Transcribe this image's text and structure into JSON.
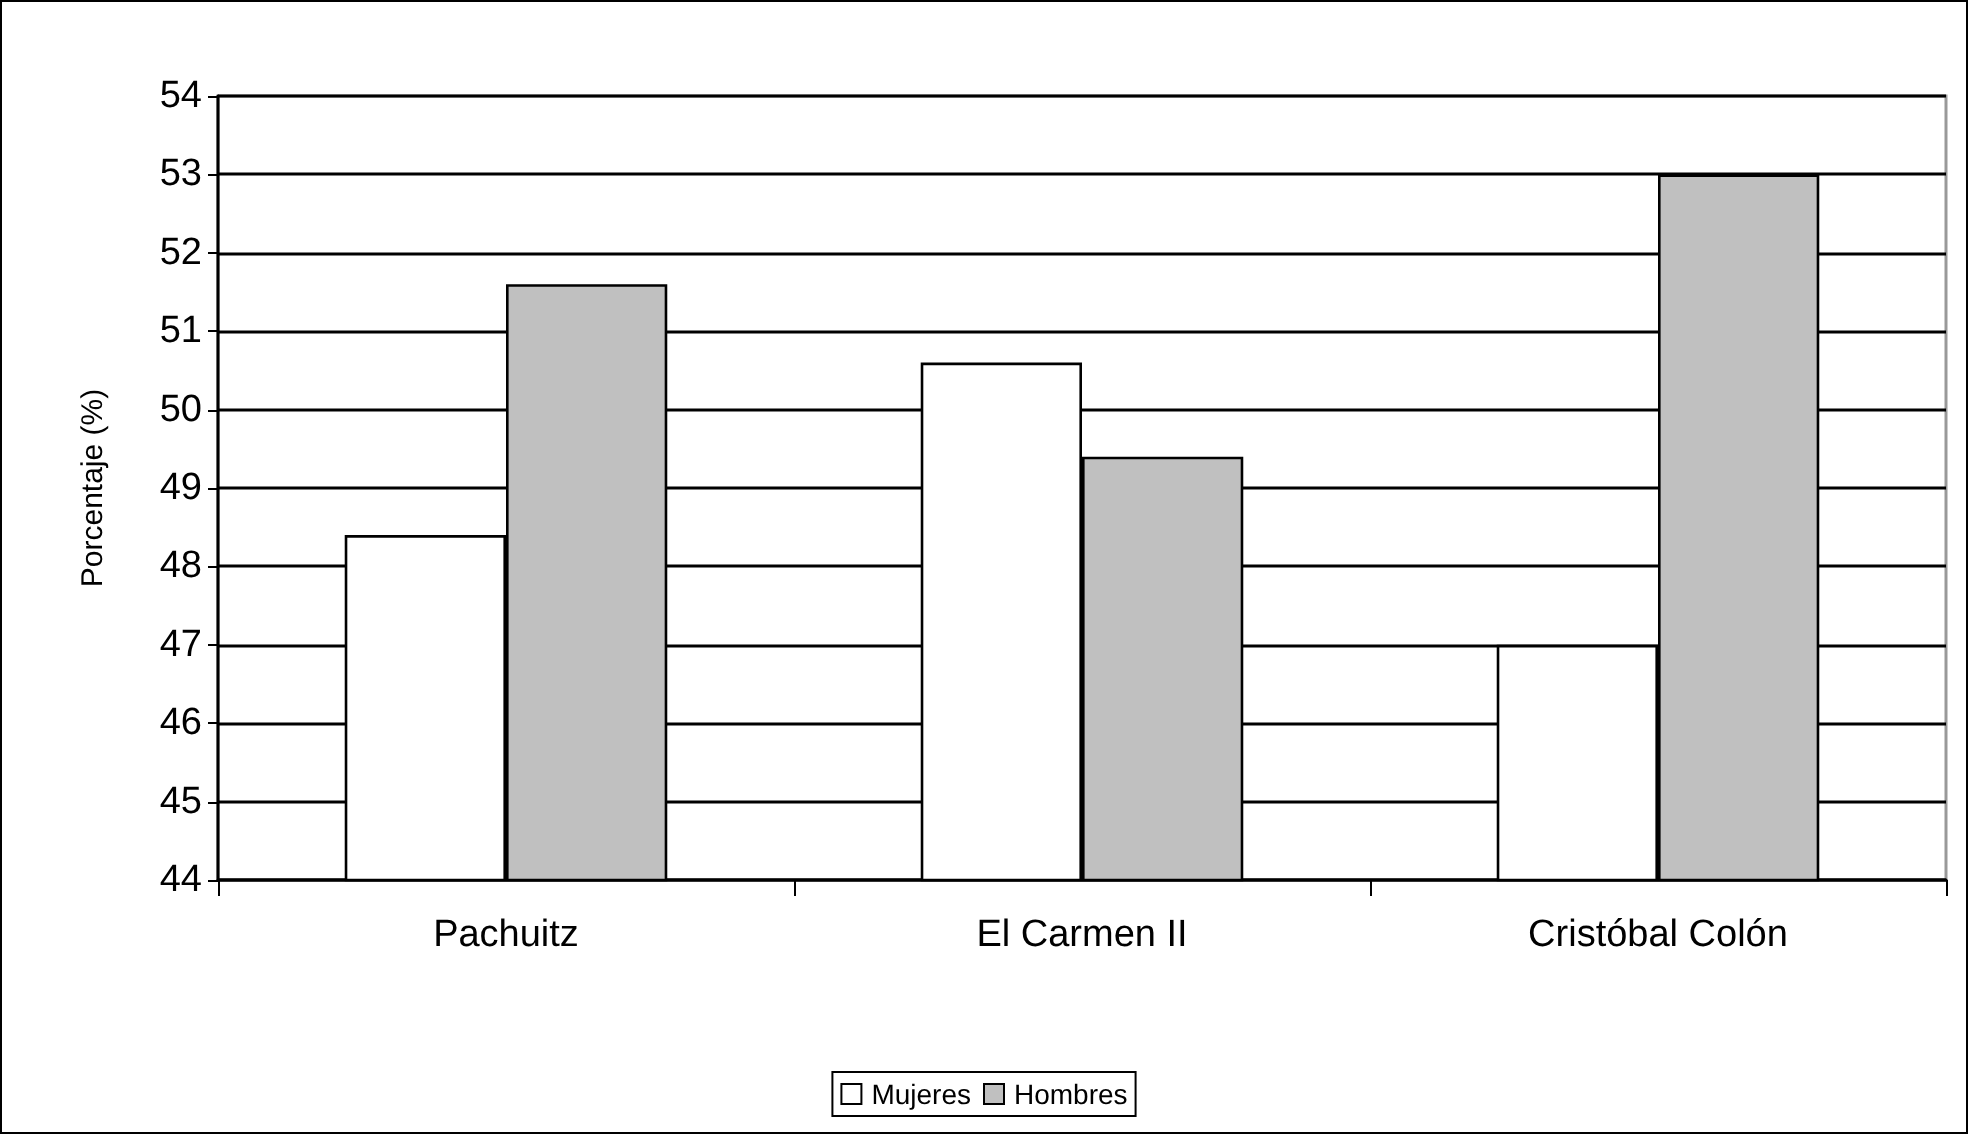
{
  "chart_data": {
    "type": "bar",
    "ylabel": "Porcentaje (%)",
    "categories": [
      "Pachuitz",
      "El Carmen II",
      "Cristóbal Colón"
    ],
    "series": [
      {
        "name": "Mujeres",
        "color": "#ffffff",
        "values": [
          48.4,
          50.6,
          47
        ]
      },
      {
        "name": "Hombres",
        "color": "#c0c0c0",
        "values": [
          51.6,
          49.4,
          53
        ]
      }
    ],
    "ylim": [
      44,
      54
    ],
    "yticks": [
      44,
      45,
      46,
      47,
      48,
      49,
      50,
      51,
      52,
      53,
      54
    ],
    "grid": "y",
    "legend": "bottom"
  }
}
